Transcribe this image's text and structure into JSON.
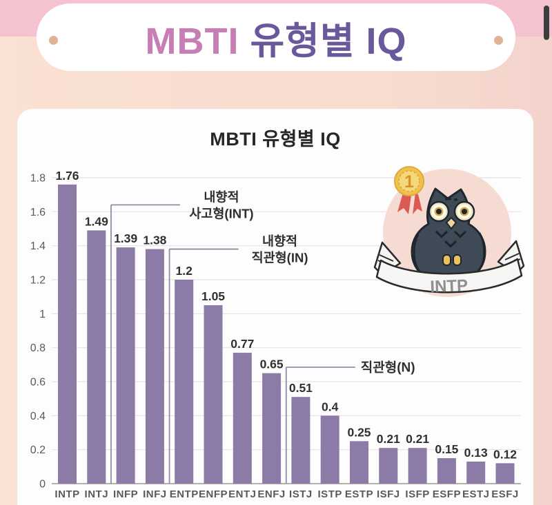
{
  "header": {
    "title_mbti": "MBTI",
    "title_rest": " 유형별 IQ"
  },
  "card": {
    "title": "MBTI 유형별 IQ"
  },
  "badge": {
    "rank": "1",
    "ribbon_label": "INTP"
  },
  "colors": {
    "top_band": "#f5c2cf",
    "background": "#f8ddd0",
    "title_mbti": "#c77eb4",
    "title_rest": "#6a589c",
    "bar": "#8b7ba6",
    "medal_gold": "#f1c14d",
    "ribbon_red": "#dc5a54",
    "owl_body": "#3e4a56",
    "owl_circle": "#f6dbd3"
  },
  "chart_data": {
    "type": "bar",
    "title": "MBTI 유형별 IQ",
    "xlabel": "",
    "ylabel": "",
    "categories": [
      "INTP",
      "INTJ",
      "INFP",
      "INFJ",
      "ENTP",
      "ENFP",
      "ENTJ",
      "ENFJ",
      "ISTJ",
      "ISTP",
      "ESTP",
      "ISFJ",
      "ISFP",
      "ESFP",
      "ESTJ",
      "ESFJ"
    ],
    "values": [
      1.76,
      1.49,
      1.39,
      1.38,
      1.2,
      1.05,
      0.77,
      0.65,
      0.51,
      0.4,
      0.25,
      0.21,
      0.21,
      0.15,
      0.13,
      0.12
    ],
    "value_labels": [
      "1.76",
      "1.49",
      "1.39",
      "1.38",
      "1.2",
      "1.05",
      "0.77",
      "0.65",
      "0.51",
      "0.4",
      "0.25",
      "0.21",
      "0.21",
      "0.15",
      "0.13",
      "0.12"
    ],
    "ylim": [
      0,
      1.8
    ],
    "yticks": {
      "values": [
        0,
        0.2,
        0.4,
        0.6,
        0.8,
        1,
        1.2,
        1.4,
        1.6,
        1.8
      ],
      "labels": [
        "0",
        "0.2",
        "0.4",
        "0.6",
        "0.8",
        "1",
        "1.2",
        "1.4",
        "1.6",
        "1.8"
      ]
    },
    "grid": "horizontal",
    "legend": "none",
    "bar_color": "#8b7ba6",
    "grid_color": "#e8e6e4",
    "axis_color": "#b3b0ae",
    "value_label_color": "#303030",
    "tick_color": "#5a5a5a",
    "annotation_text_color": "#2f2f2f",
    "annotation_line_color": "#958ba3",
    "annotations": [
      {
        "lines": [
          "내향적",
          "사고형(INT)"
        ],
        "after_index": 2,
        "y_value": 1.64
      },
      {
        "lines": [
          "내향적",
          "직관형(IN)"
        ],
        "after_index": 4,
        "y_value": 1.38
      },
      {
        "lines": [
          "직관형(N)"
        ],
        "after_index": 8,
        "y_value": 0.685
      }
    ]
  }
}
